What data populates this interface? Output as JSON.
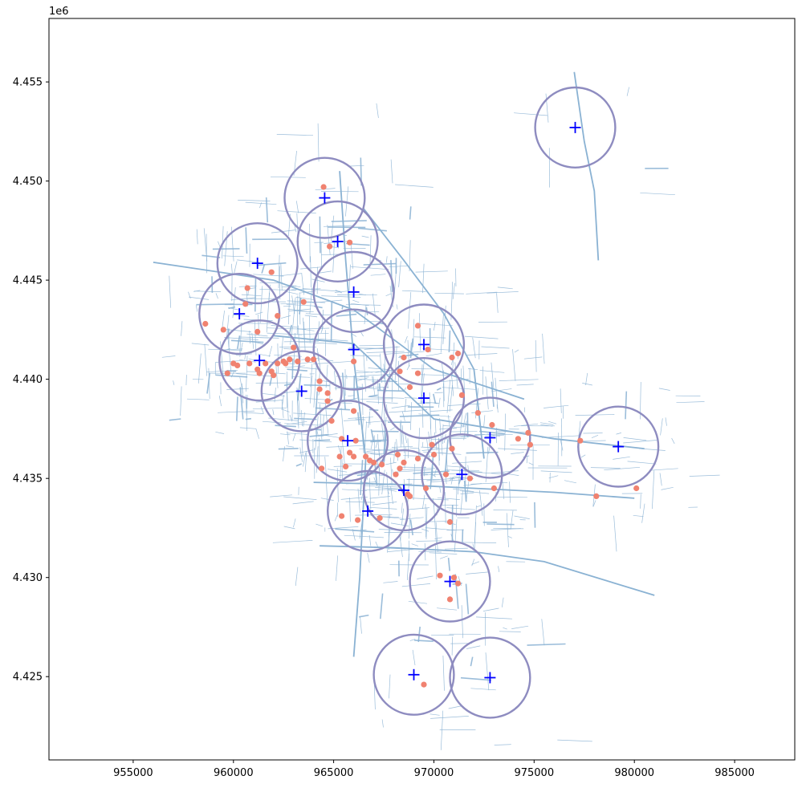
{
  "chart_data": {
    "type": "scatter",
    "title": "",
    "xlabel": "",
    "ylabel": "",
    "y_offset_label": "1e6",
    "xlim": [
      950800,
      988000
    ],
    "ylim": [
      4420800,
      4458200
    ],
    "x_ticks": [
      955000,
      960000,
      965000,
      970000,
      975000,
      980000,
      985000
    ],
    "x_tick_labels": [
      "955000",
      "960000",
      "965000",
      "970000",
      "975000",
      "980000",
      "985000"
    ],
    "y_ticks": [
      4425000,
      4430000,
      4435000,
      4440000,
      4445000,
      4450000,
      4455000
    ],
    "y_tick_labels": [
      "4.425",
      "4.430",
      "4.435",
      "4.440",
      "4.445",
      "4.450",
      "4.455"
    ],
    "grid": false,
    "colors": {
      "road_network": "#8ab2d3",
      "points": "#f08270",
      "centers": "#0000ff",
      "circles": "#8e8cc0"
    },
    "circle_radius": 2000,
    "centers": [
      {
        "x": 977050,
        "y": 4452700
      },
      {
        "x": 964550,
        "y": 4449150
      },
      {
        "x": 965200,
        "y": 4446950
      },
      {
        "x": 961200,
        "y": 4445850
      },
      {
        "x": 966000,
        "y": 4444400
      },
      {
        "x": 960300,
        "y": 4443300
      },
      {
        "x": 966000,
        "y": 4441500
      },
      {
        "x": 969500,
        "y": 4441750
      },
      {
        "x": 961300,
        "y": 4440950
      },
      {
        "x": 963400,
        "y": 4439400
      },
      {
        "x": 969500,
        "y": 4439050
      },
      {
        "x": 965700,
        "y": 4436900
      },
      {
        "x": 972800,
        "y": 4437050
      },
      {
        "x": 979200,
        "y": 4436600
      },
      {
        "x": 971400,
        "y": 4435200
      },
      {
        "x": 968500,
        "y": 4434400
      },
      {
        "x": 966700,
        "y": 4433350
      },
      {
        "x": 970800,
        "y": 4429800
      },
      {
        "x": 969000,
        "y": 4425100
      },
      {
        "x": 972800,
        "y": 4424950
      }
    ],
    "points": [
      {
        "x": 965800,
        "y": 4446900
      },
      {
        "x": 964800,
        "y": 4446700
      },
      {
        "x": 964500,
        "y": 4449700
      },
      {
        "x": 961900,
        "y": 4445400
      },
      {
        "x": 960700,
        "y": 4444600
      },
      {
        "x": 963500,
        "y": 4443900
      },
      {
        "x": 960600,
        "y": 4443800
      },
      {
        "x": 962200,
        "y": 4443200
      },
      {
        "x": 958600,
        "y": 4442800
      },
      {
        "x": 959500,
        "y": 4442500
      },
      {
        "x": 961200,
        "y": 4442400
      },
      {
        "x": 963000,
        "y": 4441600
      },
      {
        "x": 960200,
        "y": 4440700
      },
      {
        "x": 960000,
        "y": 4440800
      },
      {
        "x": 960800,
        "y": 4440800
      },
      {
        "x": 961600,
        "y": 4440800
      },
      {
        "x": 962200,
        "y": 4440800
      },
      {
        "x": 962500,
        "y": 4440900
      },
      {
        "x": 962800,
        "y": 4441000
      },
      {
        "x": 963200,
        "y": 4440900
      },
      {
        "x": 963700,
        "y": 4441000
      },
      {
        "x": 964000,
        "y": 4441000
      },
      {
        "x": 961200,
        "y": 4440500
      },
      {
        "x": 961300,
        "y": 4440300
      },
      {
        "x": 961900,
        "y": 4440400
      },
      {
        "x": 962000,
        "y": 4440200
      },
      {
        "x": 959700,
        "y": 4440300
      },
      {
        "x": 962600,
        "y": 4440800
      },
      {
        "x": 964300,
        "y": 4439900
      },
      {
        "x": 964300,
        "y": 4439500
      },
      {
        "x": 964700,
        "y": 4439300
      },
      {
        "x": 964700,
        "y": 4438900
      },
      {
        "x": 966000,
        "y": 4440900
      },
      {
        "x": 966000,
        "y": 4438400
      },
      {
        "x": 964900,
        "y": 4437900
      },
      {
        "x": 969200,
        "y": 4442700
      },
      {
        "x": 969700,
        "y": 4441500
      },
      {
        "x": 970900,
        "y": 4441100
      },
      {
        "x": 971200,
        "y": 4441300
      },
      {
        "x": 968500,
        "y": 4441100
      },
      {
        "x": 968300,
        "y": 4440400
      },
      {
        "x": 969200,
        "y": 4440300
      },
      {
        "x": 968800,
        "y": 4439600
      },
      {
        "x": 971400,
        "y": 4439200
      },
      {
        "x": 972200,
        "y": 4438300
      },
      {
        "x": 972900,
        "y": 4437700
      },
      {
        "x": 974200,
        "y": 4437000
      },
      {
        "x": 974700,
        "y": 4437300
      },
      {
        "x": 974800,
        "y": 4436700
      },
      {
        "x": 977300,
        "y": 4436900
      },
      {
        "x": 965400,
        "y": 4437000
      },
      {
        "x": 966100,
        "y": 4436900
      },
      {
        "x": 965800,
        "y": 4436300
      },
      {
        "x": 966000,
        "y": 4436100
      },
      {
        "x": 965300,
        "y": 4436100
      },
      {
        "x": 966600,
        "y": 4436100
      },
      {
        "x": 966800,
        "y": 4435900
      },
      {
        "x": 967000,
        "y": 4435800
      },
      {
        "x": 967400,
        "y": 4435700
      },
      {
        "x": 965600,
        "y": 4435600
      },
      {
        "x": 964400,
        "y": 4435500
      },
      {
        "x": 968200,
        "y": 4436200
      },
      {
        "x": 968500,
        "y": 4435800
      },
      {
        "x": 968300,
        "y": 4435500
      },
      {
        "x": 969200,
        "y": 4436000
      },
      {
        "x": 969900,
        "y": 4436700
      },
      {
        "x": 970000,
        "y": 4436200
      },
      {
        "x": 970900,
        "y": 4436500
      },
      {
        "x": 968100,
        "y": 4435200
      },
      {
        "x": 970600,
        "y": 4435200
      },
      {
        "x": 971800,
        "y": 4435000
      },
      {
        "x": 968700,
        "y": 4434200
      },
      {
        "x": 968800,
        "y": 4434100
      },
      {
        "x": 969600,
        "y": 4434500
      },
      {
        "x": 973000,
        "y": 4434500
      },
      {
        "x": 965400,
        "y": 4433100
      },
      {
        "x": 966200,
        "y": 4432900
      },
      {
        "x": 967300,
        "y": 4433000
      },
      {
        "x": 970800,
        "y": 4432800
      },
      {
        "x": 978100,
        "y": 4434100
      },
      {
        "x": 980100,
        "y": 4434500
      },
      {
        "x": 970300,
        "y": 4430100
      },
      {
        "x": 971000,
        "y": 4430000
      },
      {
        "x": 971200,
        "y": 4429700
      },
      {
        "x": 970800,
        "y": 4428900
      },
      {
        "x": 969500,
        "y": 4424600
      }
    ]
  }
}
